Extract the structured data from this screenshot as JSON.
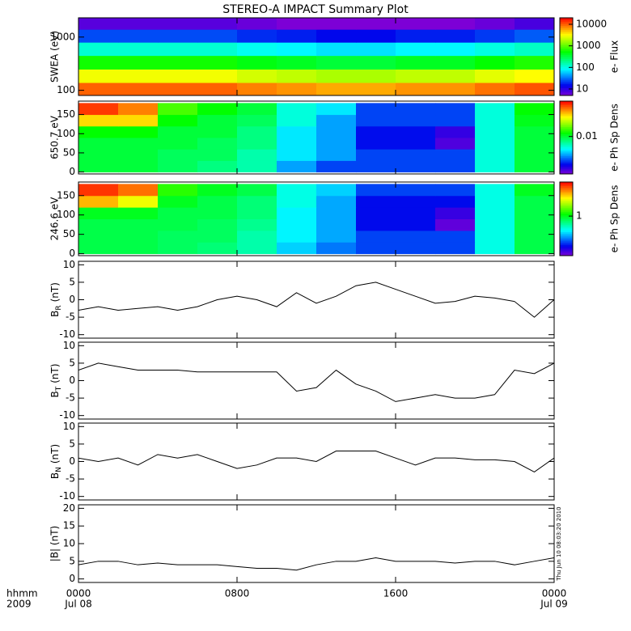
{
  "title": "STEREO-A IMPACT Summary Plot",
  "x_axis": {
    "xlim": [
      0,
      24
    ],
    "xticks": [
      {
        "value": 0,
        "label": "0000"
      },
      {
        "value": 8,
        "label": "0800"
      },
      {
        "value": 16,
        "label": "1600"
      },
      {
        "value": 24,
        "label": "0000"
      }
    ],
    "dates": [
      {
        "value": 0,
        "label": "Jul 08"
      },
      {
        "value": 24,
        "label": "Jul 09"
      }
    ],
    "label": "hhmm",
    "year": "2009"
  },
  "timestamp": "Thu Jun 10 08:03:20 2010",
  "chart_data": [
    {
      "type": "heatmap",
      "ylabel": "SWEA (eV)",
      "ylog": true,
      "ylim": [
        80,
        2300
      ],
      "yticks": [
        100,
        1000
      ],
      "x": [
        0,
        2,
        4,
        6,
        8,
        10,
        12,
        14,
        16,
        18,
        20,
        22,
        24
      ],
      "y": [
        80,
        140,
        250,
        450,
        800,
        1400,
        2300
      ],
      "values": [
        [
          10000,
          10000,
          10000,
          10000,
          8000,
          7000,
          6000,
          6000,
          7000,
          7000,
          9000,
          11000
        ],
        [
          3000,
          3000,
          3000,
          3000,
          2400,
          2100,
          1800,
          1800,
          2100,
          2100,
          2700,
          3300
        ],
        [
          600,
          600,
          600,
          600,
          480,
          420,
          360,
          360,
          420,
          420,
          540,
          660
        ],
        [
          120,
          120,
          120,
          120,
          96,
          84,
          72,
          72,
          84,
          84,
          108,
          132
        ],
        [
          25,
          25,
          25,
          25,
          20,
          18,
          15,
          15,
          18,
          18,
          22,
          28
        ],
        [
          7,
          7,
          7,
          7,
          6,
          5,
          4,
          4,
          5,
          5,
          6,
          8
        ]
      ],
      "zlog": true,
      "zlim": [
        5,
        20000
      ],
      "zticks": [
        10,
        100,
        1000,
        10000
      ],
      "zlabel": "e- Flux"
    },
    {
      "type": "heatmap",
      "ylabel": "650.7 eV",
      "ylim": [
        -5,
        185
      ],
      "yticks": [
        0,
        50,
        100,
        150
      ],
      "x": [
        0,
        2,
        4,
        6,
        8,
        10,
        12,
        14,
        16,
        18,
        20,
        22,
        24
      ],
      "y": [
        0,
        30,
        60,
        90,
        120,
        150,
        180
      ],
      "values": [
        [
          0.01,
          0.01,
          0.009,
          0.008,
          0.007,
          0.004,
          0.003,
          0.003,
          0.003,
          0.003,
          0.006,
          0.01
        ],
        [
          0.01,
          0.01,
          0.009,
          0.009,
          0.007,
          0.005,
          0.004,
          0.003,
          0.003,
          0.003,
          0.006,
          0.01
        ],
        [
          0.01,
          0.01,
          0.01,
          0.009,
          0.008,
          0.005,
          0.004,
          0.0025,
          0.0025,
          0.0018,
          0.006,
          0.01
        ],
        [
          0.012,
          0.012,
          0.01,
          0.01,
          0.008,
          0.005,
          0.004,
          0.0025,
          0.0025,
          0.002,
          0.006,
          0.01
        ],
        [
          0.03,
          0.03,
          0.012,
          0.01,
          0.009,
          0.006,
          0.004,
          0.003,
          0.003,
          0.003,
          0.006,
          0.011
        ],
        [
          0.05,
          0.04,
          0.015,
          0.012,
          0.01,
          0.006,
          0.005,
          0.003,
          0.003,
          0.003,
          0.006,
          0.012
        ]
      ],
      "zlog": true,
      "zlim": [
        0.0015,
        0.06
      ],
      "zticks": [
        0.01
      ],
      "zlabel": "e- Ph Sp Dens"
    },
    {
      "type": "heatmap",
      "ylabel": "246.6 eV",
      "ylim": [
        -5,
        185
      ],
      "yticks": [
        0,
        50,
        100,
        150
      ],
      "x": [
        0,
        2,
        4,
        6,
        8,
        10,
        12,
        14,
        16,
        18,
        20,
        22,
        24
      ],
      "y": [
        0,
        30,
        60,
        90,
        120,
        150,
        180
      ],
      "values": [
        [
          0.9,
          0.9,
          0.85,
          0.8,
          0.7,
          0.5,
          0.4,
          0.35,
          0.35,
          0.35,
          0.6,
          0.9
        ],
        [
          0.9,
          0.9,
          0.85,
          0.85,
          0.7,
          0.55,
          0.45,
          0.35,
          0.35,
          0.35,
          0.6,
          0.9
        ],
        [
          0.9,
          0.9,
          0.9,
          0.85,
          0.75,
          0.55,
          0.45,
          0.3,
          0.3,
          0.22,
          0.6,
          0.9
        ],
        [
          1.0,
          1.0,
          0.9,
          0.9,
          0.8,
          0.55,
          0.45,
          0.3,
          0.3,
          0.25,
          0.6,
          0.9
        ],
        [
          2.5,
          2.0,
          1.0,
          0.9,
          0.8,
          0.6,
          0.45,
          0.3,
          0.3,
          0.3,
          0.6,
          0.9
        ],
        [
          3.5,
          3.0,
          1.2,
          1.0,
          0.9,
          0.6,
          0.5,
          0.35,
          0.35,
          0.35,
          0.6,
          1.0
        ]
      ],
      "zlog": true,
      "zlim": [
        0.2,
        4
      ],
      "zticks": [
        1
      ],
      "zlabel": "e- Ph Sp Dens"
    },
    {
      "type": "line",
      "ylabel": {
        "base": "B",
        "sub": "R",
        "unit": "(nT)"
      },
      "ylim": [
        -11,
        11
      ],
      "yticks": [
        -10,
        -5,
        0,
        5,
        10
      ],
      "color": "#000000",
      "x": [
        0,
        1,
        2,
        3,
        4,
        5,
        6,
        7,
        8,
        9,
        10,
        11,
        12,
        13,
        14,
        15,
        16,
        17,
        18,
        19,
        20,
        21,
        22,
        23,
        24
      ],
      "values": [
        -3,
        -2,
        -3,
        -2.5,
        -2,
        -3,
        -2,
        0,
        1,
        0,
        -2,
        2,
        -1,
        1,
        4,
        5,
        3,
        1,
        -1,
        -0.5,
        1,
        0.5,
        -0.5,
        -5,
        0
      ]
    },
    {
      "type": "line",
      "ylabel": {
        "base": "B",
        "sub": "T",
        "unit": "(nT)"
      },
      "ylim": [
        -11,
        11
      ],
      "yticks": [
        -10,
        -5,
        0,
        5,
        10
      ],
      "color": "#000000",
      "x": [
        0,
        1,
        2,
        3,
        4,
        5,
        6,
        7,
        8,
        9,
        10,
        11,
        12,
        13,
        14,
        15,
        16,
        17,
        18,
        19,
        20,
        21,
        22,
        23,
        24
      ],
      "values": [
        3,
        5,
        4,
        3,
        3,
        3,
        2.5,
        2.5,
        2.5,
        2.5,
        2.5,
        -3,
        -2,
        3,
        -1,
        -3,
        -6,
        -5,
        -4,
        -5,
        -5,
        -4,
        3,
        2,
        5
      ]
    },
    {
      "type": "line",
      "ylabel": {
        "base": "B",
        "sub": "N",
        "unit": "(nT)"
      },
      "ylim": [
        -11,
        11
      ],
      "yticks": [
        -10,
        -5,
        0,
        5,
        10
      ],
      "color": "#000000",
      "x": [
        0,
        1,
        2,
        3,
        4,
        5,
        6,
        7,
        8,
        9,
        10,
        11,
        12,
        13,
        14,
        15,
        16,
        17,
        18,
        19,
        20,
        21,
        22,
        23,
        24
      ],
      "values": [
        1,
        0,
        1,
        -1,
        2,
        1,
        2,
        0,
        -2,
        -1,
        1,
        1,
        0,
        3,
        3,
        3,
        1,
        -1,
        1,
        1,
        0.5,
        0.5,
        0,
        -3,
        1
      ]
    },
    {
      "type": "line",
      "ylabel": "|B| (nT)",
      "ylim": [
        -1,
        21
      ],
      "yticks": [
        0,
        5,
        10,
        15,
        20
      ],
      "color": "#000000",
      "x": [
        0,
        1,
        2,
        3,
        4,
        5,
        6,
        7,
        8,
        9,
        10,
        11,
        12,
        13,
        14,
        15,
        16,
        17,
        18,
        19,
        20,
        21,
        22,
        23,
        24
      ],
      "values": [
        4,
        5,
        5,
        4,
        4.5,
        4,
        4,
        4,
        3.5,
        3,
        3,
        2.5,
        4,
        5,
        5,
        6,
        5,
        5,
        5,
        4.5,
        5,
        5,
        4,
        5,
        6
      ]
    }
  ]
}
